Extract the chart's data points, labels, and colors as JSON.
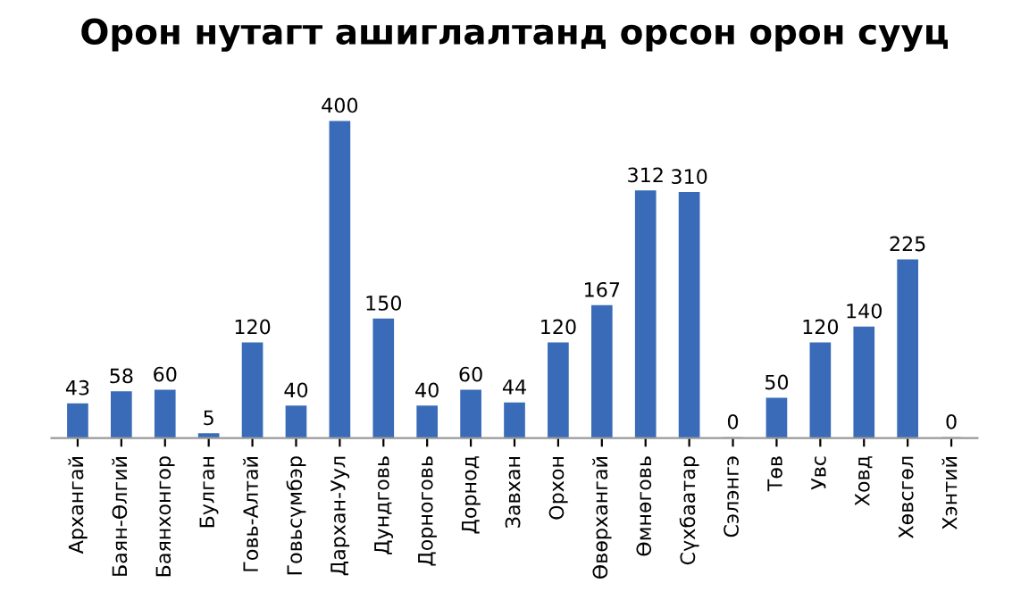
{
  "chart_data": {
    "type": "bar",
    "title": "Орон нутагт ашиглалтанд орсон орон сууц",
    "categories": [
      "Архангай",
      "Баян-Өлгий",
      "Баянхонгор",
      "Булган",
      "Говь-Алтай",
      "Говьсүмбэр",
      "Дархан-Уул",
      "Дундговь",
      "Дорноговь",
      "Дорнод",
      "Завхан",
      "Орхон",
      "Өвөрхангай",
      "Өмнөговь",
      "Сүхбаатар",
      "Сэлэнгэ",
      "Төв",
      "Увс",
      "Ховд",
      "Хөвсгөл",
      "Хэнтий"
    ],
    "values": [
      43,
      58,
      60,
      5,
      120,
      40,
      400,
      150,
      40,
      60,
      44,
      120,
      167,
      312,
      310,
      0,
      50,
      120,
      140,
      225,
      0
    ],
    "color": "#3a6bb8",
    "data_labels": true,
    "grid": false,
    "tick_labels": "x"
  }
}
